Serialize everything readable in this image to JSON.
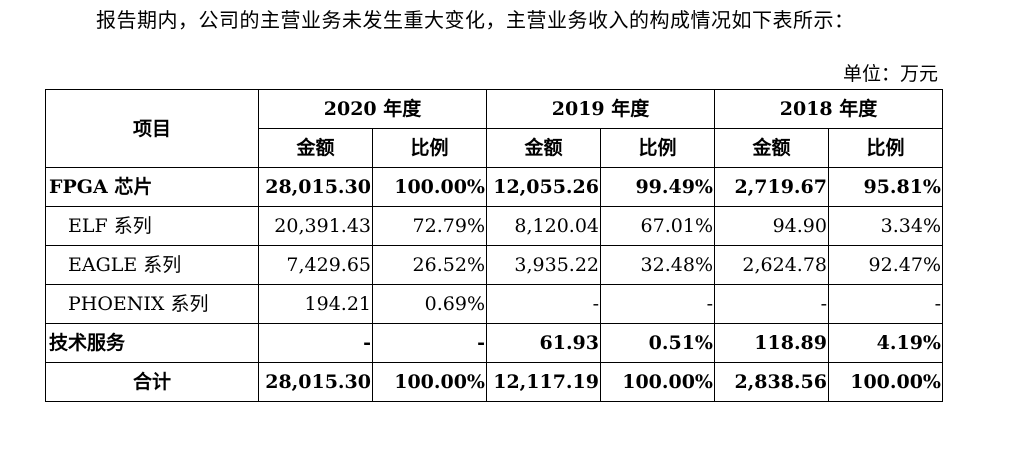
{
  "intro": "报告期内，公司的主营业务未发生重大变化，主营业务收入的构成情况如下表所示：",
  "unit": "单位：万元",
  "table": {
    "item_header": "项目",
    "years": [
      "2020 年度",
      "2019 年度",
      "2018 年度"
    ],
    "sub_headers": {
      "amount": "金额",
      "ratio": "比例"
    },
    "rows": [
      {
        "name": "FPGA 芯片",
        "bold": true,
        "indent": false,
        "cells": [
          "28,015.30",
          "100.00%",
          "12,055.26",
          "99.49%",
          "2,719.67",
          "95.81%"
        ]
      },
      {
        "name": "ELF 系列",
        "bold": false,
        "indent": true,
        "cells": [
          "20,391.43",
          "72.79%",
          "8,120.04",
          "67.01%",
          "94.90",
          "3.34%"
        ]
      },
      {
        "name": "EAGLE 系列",
        "bold": false,
        "indent": true,
        "cells": [
          "7,429.65",
          "26.52%",
          "3,935.22",
          "32.48%",
          "2,624.78",
          "92.47%"
        ]
      },
      {
        "name": "PHOENIX 系列",
        "bold": false,
        "indent": true,
        "cells": [
          "194.21",
          "0.69%",
          "-",
          "-",
          "-",
          "-"
        ]
      },
      {
        "name": "技术服务",
        "bold": true,
        "indent": false,
        "cells": [
          "-",
          "-",
          "61.93",
          "0.51%",
          "118.89",
          "4.19%"
        ]
      },
      {
        "name": "合计",
        "bold": true,
        "indent": false,
        "center": true,
        "cells": [
          "28,015.30",
          "100.00%",
          "12,117.19",
          "100.00%",
          "2,838.56",
          "100.00%"
        ]
      }
    ]
  }
}
